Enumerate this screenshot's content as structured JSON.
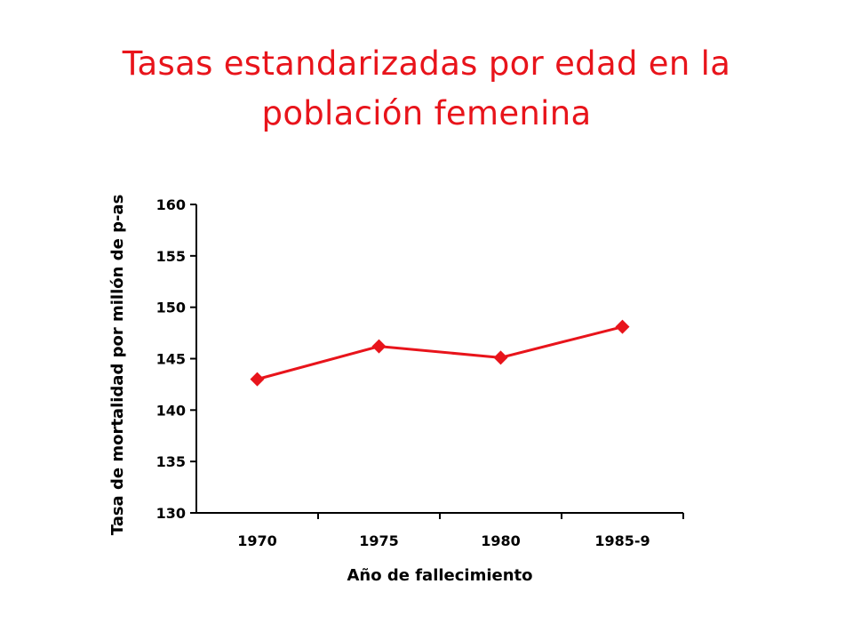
{
  "slide": {
    "title_line1": "Tasas estandarizadas por edad en la",
    "title_line2": "población femenina"
  },
  "chart_data": {
    "type": "line",
    "categories": [
      "1970",
      "1975",
      "1980",
      "1985-9"
    ],
    "series": [
      {
        "values": [
          143,
          146.2,
          145.1,
          148.1
        ]
      }
    ],
    "xlabel": "Año de fallecimiento",
    "ylabel": "Tasa de mortalidad por millón de p-as",
    "ylim": [
      130,
      160
    ],
    "yticks": [
      "130",
      "135",
      "140",
      "145",
      "150",
      "155",
      "160"
    ],
    "grid": false,
    "legend": "none",
    "colors": {
      "title": "#e8141b",
      "series": "#e8141b",
      "axis": "#000000"
    }
  }
}
